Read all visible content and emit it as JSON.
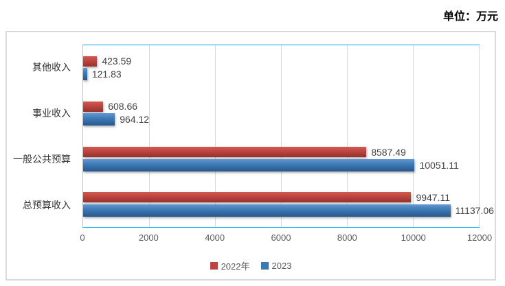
{
  "unit_label": "单位：万元",
  "colors": {
    "series_2022": "#bc4540",
    "series_2023": "#3c78b4",
    "plot_border": "#00b0f0",
    "gridline": "#d9d9d9",
    "axis_line": "#bfbfbf",
    "tick_text": "#595959",
    "label_text": "#404040"
  },
  "chart_data": {
    "type": "bar",
    "orientation": "horizontal",
    "title": "",
    "xlabel": "",
    "ylabel": "",
    "unit": "万元",
    "categories": [
      "其他收入",
      "事业收入",
      "一般公共预算",
      "总预算收入"
    ],
    "series": [
      {
        "name": "2022年",
        "color": "#bc4540",
        "values": [
          423.59,
          608.66,
          8587.49,
          9947.11
        ]
      },
      {
        "name": "2023",
        "color": "#3c78b4",
        "values": [
          121.83,
          964.12,
          10051.11,
          11137.06
        ]
      }
    ],
    "xticks": [
      0,
      2000,
      4000,
      6000,
      8000,
      10000,
      12000
    ],
    "xlim": [
      0,
      12000
    ],
    "grid": true,
    "data_labels": true,
    "legend_position": "bottom"
  }
}
